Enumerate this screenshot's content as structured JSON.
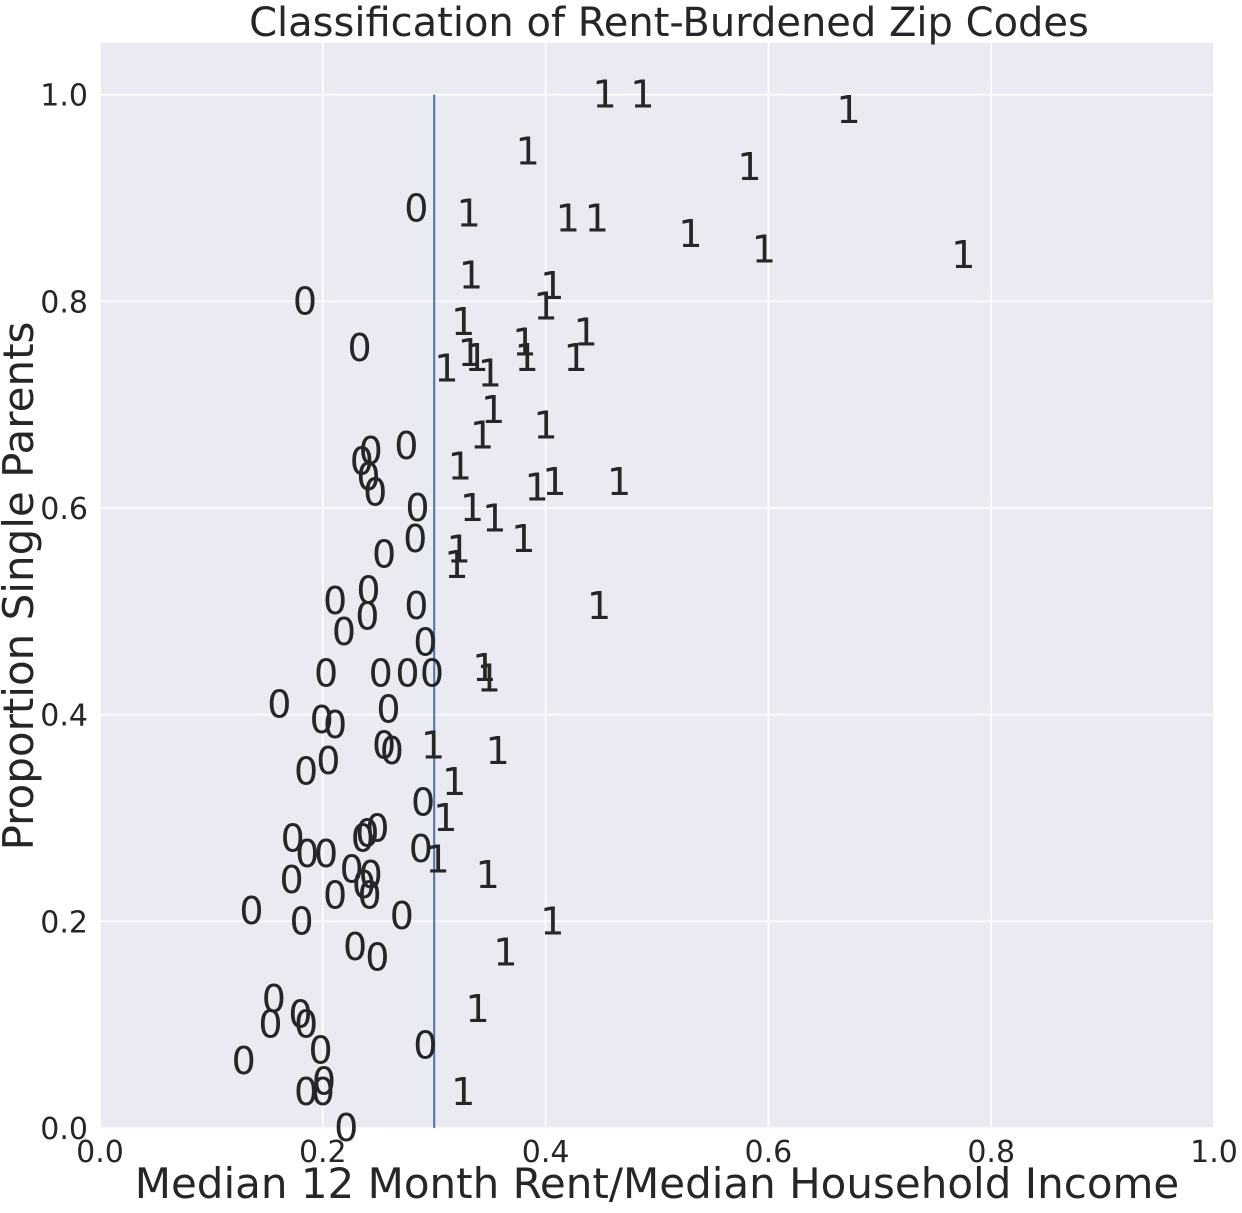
{
  "chart_data": {
    "type": "scatter",
    "title": "Classification of Rent-Burdened Zip Codes",
    "xlabel": "Median 12 Month Rent/Median Household Income",
    "ylabel": "Proportion Single Parents",
    "xlim": [
      0.0,
      1.0
    ],
    "ylim": [
      0.0,
      1.05
    ],
    "x_ticks": [
      "0.0",
      "0.2",
      "0.4",
      "0.6",
      "0.8",
      "1.0"
    ],
    "y_ticks": [
      "0.0",
      "0.2",
      "0.4",
      "0.6",
      "0.8",
      "1.0"
    ],
    "x_tick_values": [
      0.0,
      0.2,
      0.4,
      0.6,
      0.8,
      1.0
    ],
    "y_tick_values": [
      0.0,
      0.2,
      0.4,
      0.6,
      0.8,
      1.0
    ],
    "grid": true,
    "background": "#eaeaf2",
    "grid_color": "#ffffff",
    "threshold_line": {
      "x": 0.3,
      "y_range": [
        0.0,
        1.0
      ],
      "color": "#4c72b0"
    },
    "points": [
      {
        "x": 0.453,
        "y": 1.0,
        "label": "1"
      },
      {
        "x": 0.487,
        "y": 1.0,
        "label": "1"
      },
      {
        "x": 0.672,
        "y": 0.985,
        "label": "1"
      },
      {
        "x": 0.384,
        "y": 0.945,
        "label": "1"
      },
      {
        "x": 0.583,
        "y": 0.93,
        "label": "1"
      },
      {
        "x": 0.284,
        "y": 0.89,
        "label": "0"
      },
      {
        "x": 0.331,
        "y": 0.885,
        "label": "1"
      },
      {
        "x": 0.42,
        "y": 0.88,
        "label": "1"
      },
      {
        "x": 0.446,
        "y": 0.88,
        "label": "1"
      },
      {
        "x": 0.53,
        "y": 0.865,
        "label": "1"
      },
      {
        "x": 0.596,
        "y": 0.85,
        "label": "1"
      },
      {
        "x": 0.775,
        "y": 0.845,
        "label": "1"
      },
      {
        "x": 0.333,
        "y": 0.825,
        "label": "1"
      },
      {
        "x": 0.406,
        "y": 0.815,
        "label": "1"
      },
      {
        "x": 0.184,
        "y": 0.8,
        "label": "0"
      },
      {
        "x": 0.4,
        "y": 0.795,
        "label": "1"
      },
      {
        "x": 0.326,
        "y": 0.78,
        "label": "1"
      },
      {
        "x": 0.436,
        "y": 0.77,
        "label": "1"
      },
      {
        "x": 0.381,
        "y": 0.76,
        "label": "1"
      },
      {
        "x": 0.233,
        "y": 0.755,
        "label": "0"
      },
      {
        "x": 0.332,
        "y": 0.75,
        "label": "1"
      },
      {
        "x": 0.338,
        "y": 0.745,
        "label": "1"
      },
      {
        "x": 0.427,
        "y": 0.745,
        "label": "1"
      },
      {
        "x": 0.383,
        "y": 0.745,
        "label": "1"
      },
      {
        "x": 0.311,
        "y": 0.735,
        "label": "1"
      },
      {
        "x": 0.35,
        "y": 0.73,
        "label": "1"
      },
      {
        "x": 0.353,
        "y": 0.695,
        "label": "1"
      },
      {
        "x": 0.4,
        "y": 0.68,
        "label": "1"
      },
      {
        "x": 0.343,
        "y": 0.67,
        "label": "1"
      },
      {
        "x": 0.275,
        "y": 0.66,
        "label": "0"
      },
      {
        "x": 0.243,
        "y": 0.655,
        "label": "0"
      },
      {
        "x": 0.235,
        "y": 0.645,
        "label": "0"
      },
      {
        "x": 0.323,
        "y": 0.64,
        "label": "1"
      },
      {
        "x": 0.241,
        "y": 0.63,
        "label": "0"
      },
      {
        "x": 0.466,
        "y": 0.625,
        "label": "1"
      },
      {
        "x": 0.408,
        "y": 0.625,
        "label": "1"
      },
      {
        "x": 0.392,
        "y": 0.62,
        "label": "1"
      },
      {
        "x": 0.247,
        "y": 0.615,
        "label": "0"
      },
      {
        "x": 0.334,
        "y": 0.6,
        "label": "1"
      },
      {
        "x": 0.285,
        "y": 0.6,
        "label": "0"
      },
      {
        "x": 0.354,
        "y": 0.59,
        "label": "1"
      },
      {
        "x": 0.283,
        "y": 0.57,
        "label": "0"
      },
      {
        "x": 0.38,
        "y": 0.57,
        "label": "1"
      },
      {
        "x": 0.322,
        "y": 0.56,
        "label": "1"
      },
      {
        "x": 0.255,
        "y": 0.555,
        "label": "0"
      },
      {
        "x": 0.32,
        "y": 0.545,
        "label": "1"
      },
      {
        "x": 0.241,
        "y": 0.52,
        "label": "0"
      },
      {
        "x": 0.211,
        "y": 0.51,
        "label": "0"
      },
      {
        "x": 0.448,
        "y": 0.505,
        "label": "1"
      },
      {
        "x": 0.284,
        "y": 0.505,
        "label": "0"
      },
      {
        "x": 0.24,
        "y": 0.495,
        "label": "0"
      },
      {
        "x": 0.219,
        "y": 0.48,
        "label": "0"
      },
      {
        "x": 0.292,
        "y": 0.47,
        "label": "0"
      },
      {
        "x": 0.203,
        "y": 0.44,
        "label": "0"
      },
      {
        "x": 0.252,
        "y": 0.44,
        "label": "0"
      },
      {
        "x": 0.276,
        "y": 0.44,
        "label": "0"
      },
      {
        "x": 0.298,
        "y": 0.44,
        "label": "0"
      },
      {
        "x": 0.345,
        "y": 0.445,
        "label": "1"
      },
      {
        "x": 0.349,
        "y": 0.435,
        "label": "1"
      },
      {
        "x": 0.161,
        "y": 0.41,
        "label": "0"
      },
      {
        "x": 0.259,
        "y": 0.405,
        "label": "0"
      },
      {
        "x": 0.199,
        "y": 0.395,
        "label": "0"
      },
      {
        "x": 0.211,
        "y": 0.39,
        "label": "0"
      },
      {
        "x": 0.299,
        "y": 0.37,
        "label": "1"
      },
      {
        "x": 0.255,
        "y": 0.37,
        "label": "0"
      },
      {
        "x": 0.262,
        "y": 0.365,
        "label": "0"
      },
      {
        "x": 0.357,
        "y": 0.365,
        "label": "1"
      },
      {
        "x": 0.205,
        "y": 0.355,
        "label": "0"
      },
      {
        "x": 0.185,
        "y": 0.345,
        "label": "0"
      },
      {
        "x": 0.318,
        "y": 0.335,
        "label": "1"
      },
      {
        "x": 0.29,
        "y": 0.315,
        "label": "0"
      },
      {
        "x": 0.31,
        "y": 0.3,
        "label": "1"
      },
      {
        "x": 0.249,
        "y": 0.29,
        "label": "0"
      },
      {
        "x": 0.24,
        "y": 0.285,
        "label": "0"
      },
      {
        "x": 0.236,
        "y": 0.28,
        "label": "0"
      },
      {
        "x": 0.173,
        "y": 0.28,
        "label": "0"
      },
      {
        "x": 0.288,
        "y": 0.27,
        "label": "0"
      },
      {
        "x": 0.303,
        "y": 0.26,
        "label": "1"
      },
      {
        "x": 0.186,
        "y": 0.265,
        "label": "0"
      },
      {
        "x": 0.203,
        "y": 0.265,
        "label": "0"
      },
      {
        "x": 0.226,
        "y": 0.25,
        "label": "0"
      },
      {
        "x": 0.243,
        "y": 0.245,
        "label": "0"
      },
      {
        "x": 0.348,
        "y": 0.245,
        "label": "1"
      },
      {
        "x": 0.172,
        "y": 0.24,
        "label": "0"
      },
      {
        "x": 0.237,
        "y": 0.235,
        "label": "0"
      },
      {
        "x": 0.211,
        "y": 0.225,
        "label": "0"
      },
      {
        "x": 0.242,
        "y": 0.225,
        "label": "0"
      },
      {
        "x": 0.136,
        "y": 0.21,
        "label": "0"
      },
      {
        "x": 0.271,
        "y": 0.205,
        "label": "0"
      },
      {
        "x": 0.406,
        "y": 0.2,
        "label": "1"
      },
      {
        "x": 0.181,
        "y": 0.2,
        "label": "0"
      },
      {
        "x": 0.229,
        "y": 0.175,
        "label": "0"
      },
      {
        "x": 0.364,
        "y": 0.17,
        "label": "1"
      },
      {
        "x": 0.249,
        "y": 0.165,
        "label": "0"
      },
      {
        "x": 0.156,
        "y": 0.125,
        "label": "0"
      },
      {
        "x": 0.18,
        "y": 0.11,
        "label": "0"
      },
      {
        "x": 0.339,
        "y": 0.115,
        "label": "1"
      },
      {
        "x": 0.153,
        "y": 0.1,
        "label": "0"
      },
      {
        "x": 0.185,
        "y": 0.1,
        "label": "0"
      },
      {
        "x": 0.292,
        "y": 0.08,
        "label": "0"
      },
      {
        "x": 0.198,
        "y": 0.075,
        "label": "0"
      },
      {
        "x": 0.129,
        "y": 0.065,
        "label": "0"
      },
      {
        "x": 0.201,
        "y": 0.045,
        "label": "0"
      },
      {
        "x": 0.326,
        "y": 0.035,
        "label": "1"
      },
      {
        "x": 0.185,
        "y": 0.035,
        "label": "0"
      },
      {
        "x": 0.2,
        "y": 0.035,
        "label": "0"
      },
      {
        "x": 0.221,
        "y": 0.0,
        "label": "0"
      }
    ]
  }
}
